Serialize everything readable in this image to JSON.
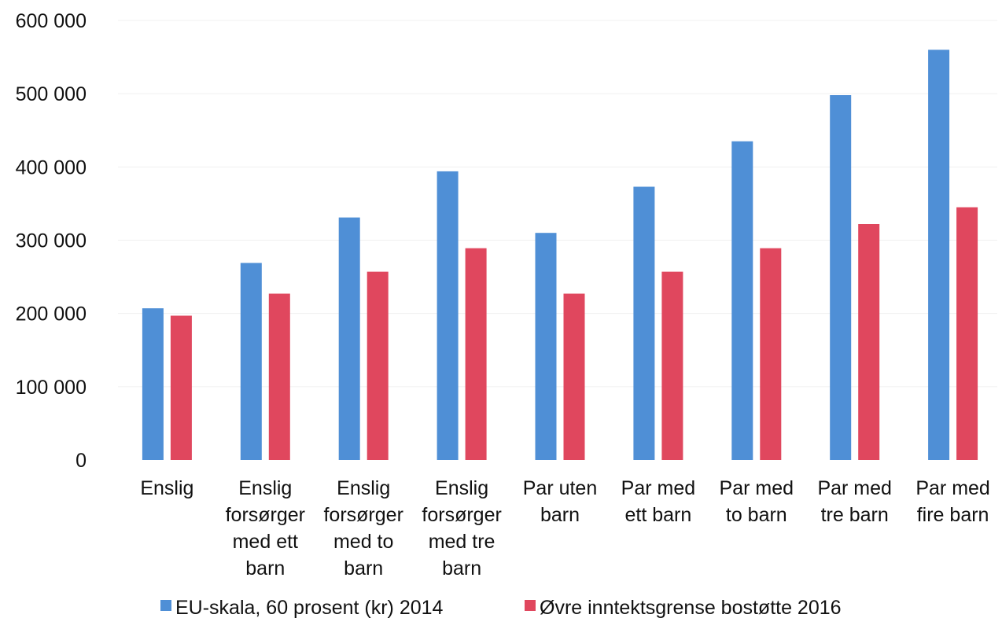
{
  "chart_data": {
    "type": "bar",
    "categories": [
      [
        "Enslig"
      ],
      [
        "Enslig",
        "forsørger",
        "med ett",
        "barn"
      ],
      [
        "Enslig",
        "forsørger",
        "med to",
        "barn"
      ],
      [
        "Enslig",
        "forsørger",
        "med tre",
        "barn"
      ],
      [
        "Par uten",
        "barn"
      ],
      [
        "Par med",
        "ett barn"
      ],
      [
        "Par med",
        "to barn"
      ],
      [
        "Par med",
        "tre barn"
      ],
      [
        "Par med",
        "fire barn"
      ]
    ],
    "series": [
      {
        "name": "EU-skala, 60 prosent (kr) 2014",
        "color": "#4f8fd6",
        "values": [
          207000,
          269000,
          331000,
          394000,
          310000,
          373000,
          435000,
          498000,
          560000
        ]
      },
      {
        "name": "Øvre inntektsgrense bostøtte 2016",
        "color": "#e0475e",
        "values": [
          197000,
          227000,
          257000,
          289000,
          227000,
          257000,
          289000,
          322000,
          345000
        ]
      }
    ],
    "yticks": [
      "0",
      "100 000",
      "200 000",
      "300 000",
      "400 000",
      "500 000",
      "600 000"
    ],
    "ylim": [
      0,
      600000
    ],
    "grid": true,
    "legend_position": "bottom"
  }
}
